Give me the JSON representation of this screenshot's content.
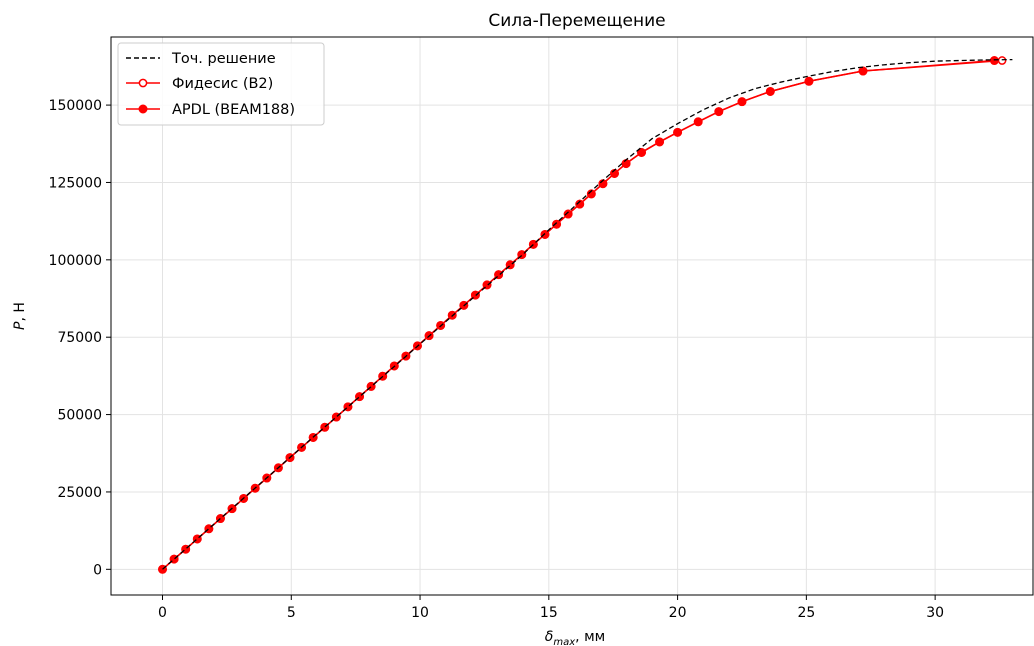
{
  "chart_data": {
    "type": "line",
    "title": "Сила-Перемещение",
    "xlabel": {
      "symbol": "δ",
      "subscript": "max",
      "unit": ", мм"
    },
    "ylabel": {
      "symbol": "P",
      "unit": ", Н"
    },
    "xlim": [
      -2,
      33.8
    ],
    "ylim": [
      -8300,
      172000
    ],
    "xticks": [
      0,
      5,
      10,
      15,
      20,
      25,
      30
    ],
    "yticks": [
      0,
      25000,
      50000,
      75000,
      100000,
      125000,
      150000
    ],
    "grid": true,
    "legend_position": "top-left",
    "series": [
      {
        "name": "Точ. решение",
        "style": "dashed",
        "color": "#000000",
        "x": [
          0,
          2,
          4,
          6,
          8,
          10,
          12,
          14,
          15,
          16,
          17,
          18,
          19,
          20,
          21,
          22,
          23,
          24,
          25,
          26,
          27,
          28,
          29,
          30,
          31,
          32,
          33
        ],
        "y": [
          0,
          14600,
          29200,
          43800,
          58300,
          72800,
          87300,
          101800,
          109700,
          117300,
          124900,
          132300,
          139100,
          144000,
          148500,
          152300,
          155300,
          157400,
          159200,
          160800,
          162100,
          163000,
          163700,
          164200,
          164400,
          164600,
          164700
        ]
      },
      {
        "name": "Фидесис (B2)",
        "style": "solid-open-markers",
        "color": "#ff0000",
        "x": [
          0,
          0.45,
          0.9,
          1.35,
          1.8,
          2.25,
          2.7,
          3.15,
          3.6,
          4.05,
          4.5,
          4.95,
          5.4,
          5.85,
          6.3,
          6.75,
          7.2,
          7.65,
          8.1,
          8.55,
          9.0,
          9.45,
          9.9,
          10.35,
          10.8,
          11.25,
          11.7,
          12.15,
          12.6,
          13.05,
          13.5,
          13.95,
          14.4,
          14.85,
          15.3,
          15.75,
          16.2,
          16.65,
          17.1,
          17.55,
          18.0,
          18.6,
          19.3,
          20.0,
          20.8,
          21.6,
          22.5,
          23.6,
          25.1,
          27.2,
          32.6
        ],
        "y": [
          0,
          3300,
          6500,
          9800,
          13100,
          16400,
          19600,
          22900,
          26200,
          29500,
          32800,
          36100,
          39400,
          42600,
          45900,
          49200,
          52500,
          55800,
          59100,
          62400,
          65700,
          68900,
          72200,
          75500,
          78800,
          82100,
          85300,
          88600,
          91900,
          95200,
          98400,
          101700,
          105000,
          108200,
          111500,
          114800,
          118000,
          121300,
          124600,
          127900,
          131100,
          134700,
          138100,
          141200,
          144600,
          147900,
          151100,
          154400,
          157700,
          161000,
          164400
        ]
      },
      {
        "name": "APDL (BEAM188)",
        "style": "solid-filled-markers",
        "color": "#ff0000",
        "x": [
          0,
          0.45,
          0.9,
          1.35,
          1.8,
          2.25,
          2.7,
          3.15,
          3.6,
          4.05,
          4.5,
          4.95,
          5.4,
          5.85,
          6.3,
          6.75,
          7.2,
          7.65,
          8.1,
          8.55,
          9.0,
          9.45,
          9.9,
          10.35,
          10.8,
          11.25,
          11.7,
          12.15,
          12.6,
          13.05,
          13.5,
          13.95,
          14.4,
          14.85,
          15.3,
          15.75,
          16.2,
          16.65,
          17.1,
          17.55,
          18.0,
          18.6,
          19.3,
          20.0,
          20.8,
          21.6,
          22.5,
          23.6,
          25.1,
          27.2,
          32.3
        ],
        "y": [
          0,
          3300,
          6500,
          9800,
          13100,
          16400,
          19600,
          22900,
          26200,
          29500,
          32800,
          36100,
          39400,
          42600,
          45900,
          49200,
          52500,
          55800,
          59100,
          62400,
          65700,
          68900,
          72200,
          75500,
          78800,
          82100,
          85300,
          88600,
          91900,
          95200,
          98400,
          101700,
          105000,
          108200,
          111500,
          114800,
          118000,
          121300,
          124600,
          127900,
          131100,
          134700,
          138100,
          141200,
          144600,
          147900,
          151100,
          154400,
          157700,
          161000,
          164400
        ]
      }
    ]
  }
}
